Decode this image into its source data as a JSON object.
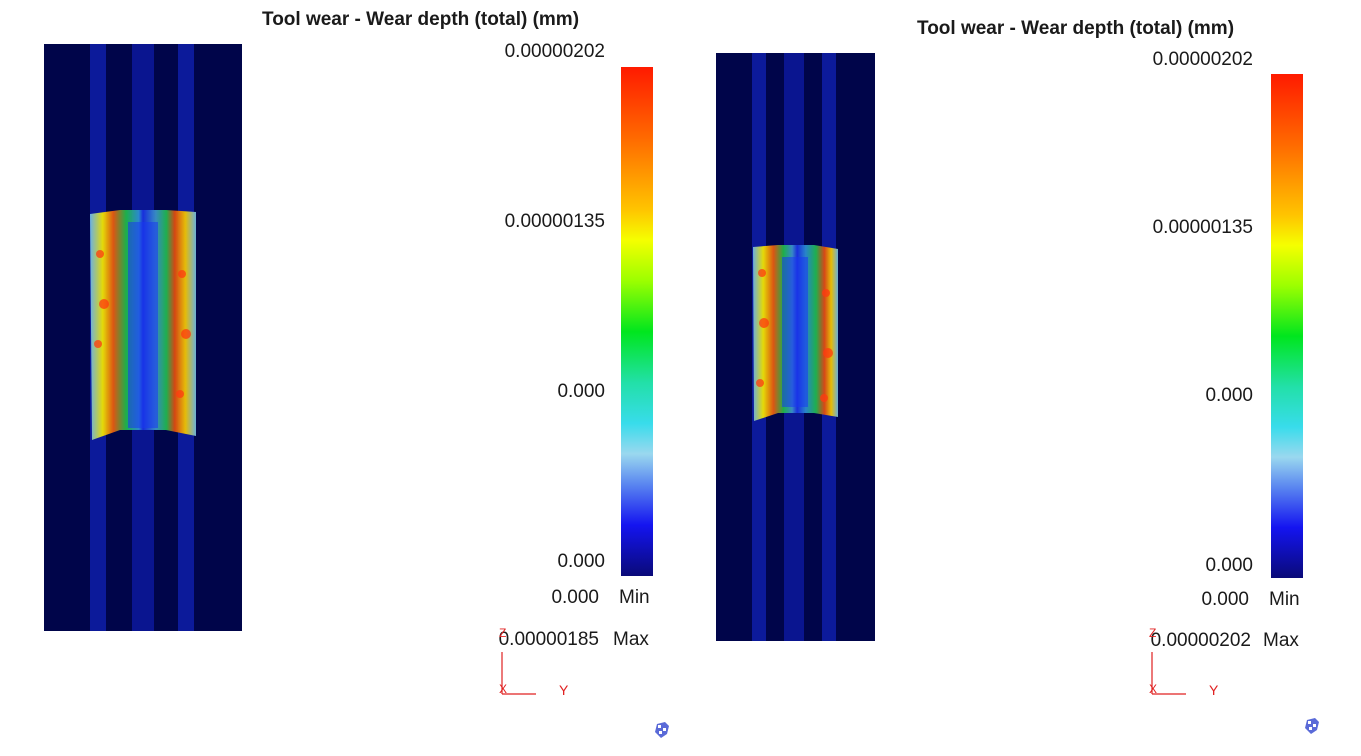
{
  "panels": [
    {
      "title": "Tool wear - Wear depth (total) (mm)",
      "scale_labels": [
        "0.00000202",
        "0.00000135",
        "0.000",
        "0.000"
      ],
      "min_value": "0.000",
      "min_label": "Min",
      "max_value": "0.00000185",
      "max_label": "Max",
      "axis_labels": {
        "z": "Z",
        "x": "X",
        "y": "Y"
      }
    },
    {
      "title": "Tool wear - Wear depth (total) (mm)",
      "scale_labels": [
        "0.00000202",
        "0.00000135",
        "0.000",
        "0.000"
      ],
      "min_value": "0.000",
      "min_label": "Min",
      "max_value": "0.00000202",
      "max_label": "Max",
      "axis_labels": {
        "z": "Z",
        "x": "X",
        "y": "Y"
      }
    }
  ],
  "colors": {
    "tool_background": "#00054a",
    "axis_red": "#e02020",
    "colorbar_top": "#ff1a00",
    "colorbar_bottom": "#0a0a78"
  },
  "icons": [
    "view-cube-icon"
  ]
}
